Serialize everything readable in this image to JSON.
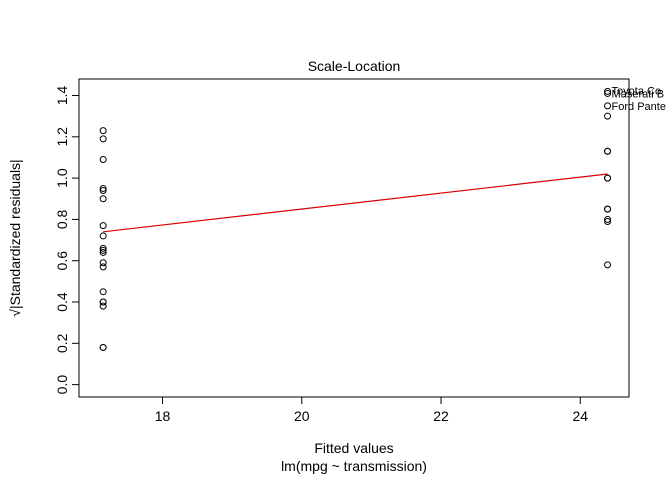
{
  "chart_data": {
    "type": "scatter",
    "title": "Scale-Location",
    "xlabel": "Fitted values",
    "xlabel2": "lm(mpg ~ transmission)",
    "ylabel": "√|Standardized residuals|",
    "xlim": [
      16.8,
      24.7
    ],
    "ylim": [
      -0.06,
      1.48
    ],
    "xticks": [
      18,
      20,
      22,
      24
    ],
    "yticks": [
      0.0,
      0.2,
      0.4,
      0.6,
      0.8,
      1.0,
      1.2,
      1.4
    ],
    "grid": false,
    "points": [
      {
        "x": 17.147,
        "y": 1.23
      },
      {
        "x": 17.147,
        "y": 1.19
      },
      {
        "x": 17.147,
        "y": 1.09
      },
      {
        "x": 17.147,
        "y": 0.95
      },
      {
        "x": 17.147,
        "y": 0.94
      },
      {
        "x": 17.147,
        "y": 0.9
      },
      {
        "x": 17.147,
        "y": 0.77
      },
      {
        "x": 17.147,
        "y": 0.72
      },
      {
        "x": 17.147,
        "y": 0.66
      },
      {
        "x": 17.147,
        "y": 0.64
      },
      {
        "x": 17.147,
        "y": 0.59
      },
      {
        "x": 17.147,
        "y": 0.57
      },
      {
        "x": 17.147,
        "y": 0.45
      },
      {
        "x": 17.147,
        "y": 0.4
      },
      {
        "x": 17.147,
        "y": 0.38
      },
      {
        "x": 17.147,
        "y": 0.18
      },
      {
        "x": 17.147,
        "y": 0.18
      },
      {
        "x": 17.147,
        "y": 0.4
      },
      {
        "x": 17.147,
        "y": 0.65
      },
      {
        "x": 24.392,
        "y": 1.42
      },
      {
        "x": 24.392,
        "y": 1.41
      },
      {
        "x": 24.392,
        "y": 1.35
      },
      {
        "x": 24.392,
        "y": 1.3
      },
      {
        "x": 24.392,
        "y": 1.13
      },
      {
        "x": 24.392,
        "y": 1.0
      },
      {
        "x": 24.392,
        "y": 0.85
      },
      {
        "x": 24.392,
        "y": 0.8
      },
      {
        "x": 24.392,
        "y": 0.79
      },
      {
        "x": 24.392,
        "y": 0.58
      },
      {
        "x": 24.392,
        "y": 1.0
      },
      {
        "x": 24.392,
        "y": 0.85
      },
      {
        "x": 24.392,
        "y": 1.13
      }
    ],
    "labeled_points": [
      {
        "label": "Toyota Co",
        "x": 24.392,
        "y": 1.425
      },
      {
        "label": "Maserati B",
        "x": 24.392,
        "y": 1.41
      },
      {
        "label": "Ford Pante",
        "x": 24.392,
        "y": 1.35
      }
    ],
    "smooth_line": {
      "color": "#dd0000",
      "points": [
        [
          17.147,
          0.74
        ],
        [
          24.392,
          1.02
        ]
      ]
    }
  }
}
